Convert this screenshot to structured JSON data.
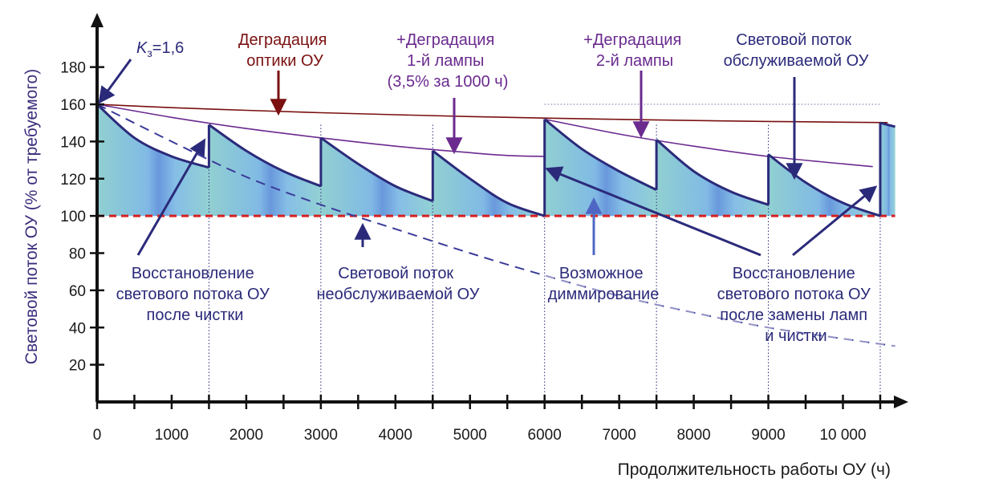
{
  "chart_data": {
    "type": "line",
    "xlabel": "Продолжительность работы ОУ (ч)",
    "ylabel": "Световой поток ОУ (% от требуемого)",
    "xlim": [
      0,
      10700
    ],
    "ylim": [
      0,
      205
    ],
    "x_ticks": [
      {
        "x": 0,
        "label": "0"
      },
      {
        "x": 1000,
        "label": "1000"
      },
      {
        "x": 2000,
        "label": "2000"
      },
      {
        "x": 3000,
        "label": "3000"
      },
      {
        "x": 4000,
        "label": "4000"
      },
      {
        "x": 5000,
        "label": "5000"
      },
      {
        "x": 6000,
        "label": "6000"
      },
      {
        "x": 7000,
        "label": "7000"
      },
      {
        "x": 8000,
        "label": "8000"
      },
      {
        "x": 9000,
        "label": "9000"
      },
      {
        "x": 10000,
        "label": "10 000"
      }
    ],
    "minor_x_ticks": [
      500,
      1500,
      2500,
      3500,
      4500,
      5500,
      6500,
      7500,
      8500,
      9500,
      10500
    ],
    "y_ticks": [
      {
        "y": 20,
        "label": "20"
      },
      {
        "y": 40,
        "label": "40"
      },
      {
        "y": 60,
        "label": "60"
      },
      {
        "y": 80,
        "label": "80"
      },
      {
        "y": 100,
        "label": "100"
      },
      {
        "y": 120,
        "label": "120"
      },
      {
        "y": 140,
        "label": "140"
      },
      {
        "y": 160,
        "label": "160"
      },
      {
        "y": 180,
        "label": "180"
      }
    ],
    "required_level": 100,
    "maintenance_x": [
      1500,
      3000,
      4500,
      6000,
      7500,
      9000,
      10500
    ],
    "series": [
      {
        "key": "optics",
        "color": "#7a1010",
        "points": [
          [
            0,
            160
          ],
          [
            1000,
            158.2
          ],
          [
            2000,
            156.8
          ],
          [
            3000,
            155.5
          ],
          [
            4000,
            154.4
          ],
          [
            5000,
            153.4
          ],
          [
            6000,
            152.6
          ],
          [
            7000,
            151.9
          ],
          [
            8000,
            151.3
          ],
          [
            9000,
            150.8
          ],
          [
            10000,
            150.4
          ],
          [
            10600,
            150.2
          ]
        ]
      },
      {
        "key": "lamp1",
        "color": "#6a2a8e",
        "points": [
          [
            0,
            160
          ],
          [
            1000,
            153
          ],
          [
            2000,
            147
          ],
          [
            3000,
            142
          ],
          [
            4000,
            137.5
          ],
          [
            5000,
            134
          ],
          [
            5500,
            132.5
          ],
          [
            6000,
            132
          ]
        ]
      },
      {
        "key": "lamp2",
        "color": "#6a2a8e",
        "points": [
          [
            6000,
            152
          ],
          [
            7000,
            144
          ],
          [
            8000,
            137.5
          ],
          [
            9000,
            132
          ],
          [
            10000,
            128
          ],
          [
            10400,
            126.5
          ]
        ]
      },
      {
        "key": "unserviced",
        "color": "#3b3b9a",
        "style": "dashed",
        "points": [
          [
            0,
            160
          ],
          [
            1000,
            140
          ],
          [
            2000,
            121
          ],
          [
            3000,
            106
          ],
          [
            4000,
            93
          ],
          [
            5000,
            80
          ],
          [
            6000,
            68
          ],
          [
            7000,
            57
          ],
          [
            8000,
            48
          ],
          [
            9000,
            40
          ],
          [
            10000,
            34
          ],
          [
            10700,
            30
          ]
        ]
      },
      {
        "key": "serviced",
        "color": "#2b2a7a",
        "style": "sawtooth",
        "points": [
          [
            0,
            160
          ],
          [
            500,
            142
          ],
          [
            1000,
            132
          ],
          [
            1500,
            126
          ],
          [
            1500,
            149
          ],
          [
            2000,
            135
          ],
          [
            2500,
            124
          ],
          [
            3000,
            116
          ],
          [
            3000,
            142
          ],
          [
            3500,
            128
          ],
          [
            4000,
            116
          ],
          [
            4500,
            108
          ],
          [
            4500,
            135
          ],
          [
            5000,
            120
          ],
          [
            5500,
            107
          ],
          [
            6000,
            100
          ],
          [
            6000,
            152
          ],
          [
            6500,
            136
          ],
          [
            7000,
            124
          ],
          [
            7500,
            114
          ],
          [
            7500,
            141
          ],
          [
            8000,
            124
          ],
          [
            8500,
            113
          ],
          [
            9000,
            106
          ],
          [
            9000,
            133
          ],
          [
            9500,
            118
          ],
          [
            10000,
            107
          ],
          [
            10500,
            100
          ],
          [
            10500,
            150
          ],
          [
            10700,
            148
          ]
        ]
      }
    ],
    "annotations": [
      {
        "key": "k3",
        "text_k": "K",
        "text_sub": "з",
        "text_rest": "=1,6"
      },
      {
        "key": "optics_label",
        "lines": [
          "Деградация",
          "оптики ОУ"
        ],
        "color": "#7a1010"
      },
      {
        "key": "lamp1_label",
        "lines": [
          "+Деградация",
          "1-й лампы",
          "(3,5% за 1000 ч)"
        ],
        "color": "#6a2a8e"
      },
      {
        "key": "lamp2_label",
        "lines": [
          "+Деградация",
          "2-й лампы"
        ],
        "color": "#6a2a8e"
      },
      {
        "key": "serviced_label",
        "lines": [
          "Световой поток",
          "обслуживаемой ОУ"
        ],
        "color": "#2b2a7a"
      },
      {
        "key": "cleaning_label",
        "lines": [
          "Восстановление",
          "светового потока ОУ",
          "после чистки"
        ],
        "color": "#2b2a7a"
      },
      {
        "key": "unserviced_label",
        "lines": [
          "Световой поток",
          "необслуживаемой ОУ"
        ],
        "color": "#2b2a7a"
      },
      {
        "key": "dimming_label",
        "lines": [
          "Возможное",
          "диммирование"
        ],
        "color": "#2b2a7a"
      },
      {
        "key": "relamp_label",
        "lines": [
          "Восстановление",
          "светового потока ОУ",
          "после замены ламп",
          "и чистки"
        ],
        "color": "#2b2a7a"
      }
    ]
  }
}
